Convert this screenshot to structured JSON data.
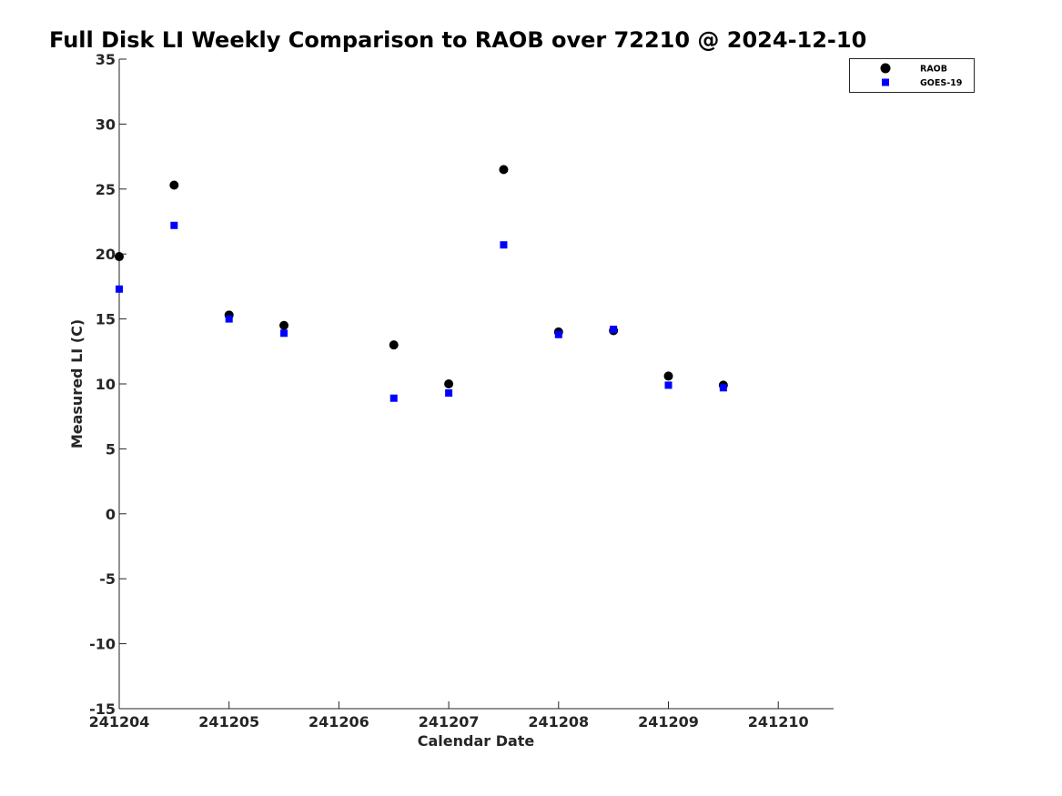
{
  "chart_data": {
    "type": "scatter",
    "title": "Full Disk LI Weekly Comparison to RAOB over 72210 @ 2024-12-10",
    "xlabel": "Calendar Date",
    "ylabel": "Measured LI (C)",
    "x_tick_labels": [
      "241204",
      "241205",
      "241206",
      "241207",
      "241208",
      "241209",
      "241210"
    ],
    "y_tick_labels": [
      "-15",
      "-10",
      "-5",
      "0",
      "5",
      "10",
      "15",
      "20",
      "25",
      "30",
      "35"
    ],
    "y_ticks": [
      -15,
      -10,
      -5,
      0,
      5,
      10,
      15,
      20,
      25,
      30,
      35
    ],
    "ylim": [
      -15,
      35
    ],
    "xlim_days": [
      0,
      6.5
    ],
    "x_is_date": true,
    "grid": false,
    "legend_position": "top-right",
    "series": [
      {
        "name": "RAOB",
        "marker": "circle",
        "color": "#000000",
        "x": [
          "2024-12-04 00Z",
          "2024-12-04 12Z",
          "2024-12-05 00Z",
          "2024-12-05 12Z",
          "2024-12-06 12Z",
          "2024-12-07 00Z",
          "2024-12-07 12Z",
          "2024-12-08 00Z",
          "2024-12-08 12Z",
          "2024-12-09 00Z",
          "2024-12-09 12Z"
        ],
        "values": [
          19.8,
          25.3,
          15.3,
          14.5,
          13.0,
          10.0,
          26.5,
          14.0,
          14.1,
          10.6,
          9.9
        ]
      },
      {
        "name": "GOES-19",
        "marker": "square",
        "color": "#0000ff",
        "x": [
          "2024-12-04 00Z",
          "2024-12-04 12Z",
          "2024-12-05 00Z",
          "2024-12-05 12Z",
          "2024-12-06 12Z",
          "2024-12-07 00Z",
          "2024-12-07 12Z",
          "2024-12-08 00Z",
          "2024-12-08 12Z",
          "2024-12-09 00Z",
          "2024-12-09 12Z"
        ],
        "values": [
          17.3,
          22.2,
          15.0,
          13.9,
          8.9,
          9.3,
          20.7,
          13.8,
          14.2,
          9.9,
          9.7
        ]
      }
    ]
  }
}
